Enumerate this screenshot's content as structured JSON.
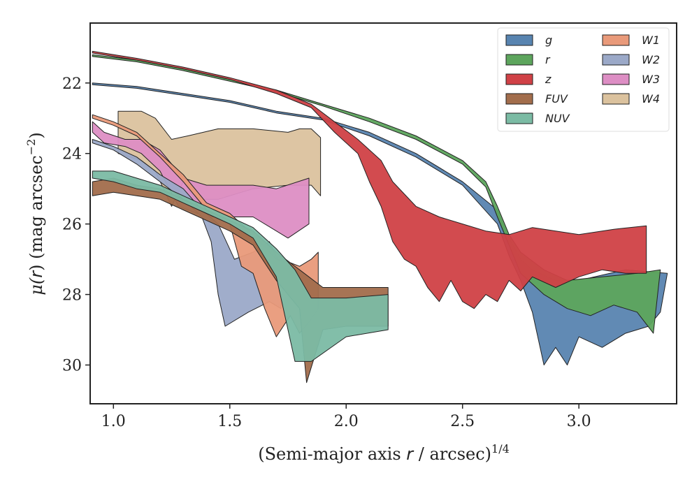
{
  "chart_data": {
    "type": "area",
    "title": "",
    "xlabel_pre": "(Semi-major axis ",
    "xlabel_var": "r",
    "xlabel_post": " / arcsec)",
    "xlabel_sup": "1/4",
    "ylabel_pre": "μ(",
    "ylabel_var": "r",
    "ylabel_post": ") (mag arcsec",
    "ylabel_sup": "−2",
    "ylabel_close": ")",
    "xlim": [
      0.9,
      3.42
    ],
    "ylim": [
      31.1,
      20.3
    ],
    "y_inverted": true,
    "xticks": [
      1.0,
      1.5,
      2.0,
      2.5,
      3.0
    ],
    "xtick_labels": [
      "1.0",
      "1.5",
      "2.0",
      "2.5",
      "3.0"
    ],
    "yticks": [
      22,
      24,
      26,
      28,
      30
    ],
    "ytick_labels": [
      "22",
      "24",
      "26",
      "28",
      "30"
    ],
    "grid": false,
    "legend_position": "top-right",
    "legend_columns": 2,
    "series": [
      {
        "name": "W4",
        "color": "#dbc29e",
        "upper": [
          [
            1.02,
            22.8
          ],
          [
            1.12,
            22.8
          ],
          [
            1.18,
            23.0
          ],
          [
            1.25,
            23.6
          ],
          [
            1.32,
            23.5
          ],
          [
            1.45,
            23.3
          ],
          [
            1.6,
            23.3
          ],
          [
            1.75,
            23.4
          ],
          [
            1.8,
            23.3
          ],
          [
            1.85,
            23.3
          ],
          [
            1.89,
            23.55
          ]
        ],
        "lower": [
          [
            1.02,
            24.0
          ],
          [
            1.12,
            24.2
          ],
          [
            1.18,
            24.5
          ],
          [
            1.25,
            25.5
          ],
          [
            1.3,
            24.8
          ],
          [
            1.35,
            25.3
          ],
          [
            1.45,
            25.3
          ],
          [
            1.6,
            25.0
          ],
          [
            1.75,
            24.9
          ],
          [
            1.85,
            24.9
          ],
          [
            1.89,
            25.2
          ]
        ]
      },
      {
        "name": "W3",
        "color": "#dd8ec4",
        "upper": [
          [
            0.91,
            23.1
          ],
          [
            0.96,
            23.4
          ],
          [
            1.05,
            23.6
          ],
          [
            1.12,
            23.6
          ],
          [
            1.2,
            23.9
          ],
          [
            1.3,
            24.7
          ],
          [
            1.4,
            24.9
          ],
          [
            1.6,
            24.9
          ],
          [
            1.7,
            25.0
          ],
          [
            1.84,
            24.7
          ]
        ],
        "lower": [
          [
            0.91,
            23.4
          ],
          [
            0.96,
            23.7
          ],
          [
            1.05,
            23.8
          ],
          [
            1.12,
            24.0
          ],
          [
            1.2,
            24.5
          ],
          [
            1.28,
            25.5
          ],
          [
            1.4,
            25.8
          ],
          [
            1.6,
            25.8
          ],
          [
            1.75,
            26.4
          ],
          [
            1.84,
            26.0
          ]
        ]
      },
      {
        "name": "W2",
        "color": "#9ba9c8",
        "upper": [
          [
            0.91,
            23.6
          ],
          [
            1.0,
            23.8
          ],
          [
            1.1,
            24.1
          ],
          [
            1.2,
            24.6
          ],
          [
            1.3,
            25.0
          ],
          [
            1.38,
            25.6
          ],
          [
            1.45,
            26.0
          ],
          [
            1.52,
            27.0
          ],
          [
            1.6,
            26.8
          ],
          [
            1.67,
            26.5
          ],
          [
            1.72,
            27.2
          ]
        ],
        "lower": [
          [
            0.91,
            23.7
          ],
          [
            1.0,
            23.9
          ],
          [
            1.1,
            24.3
          ],
          [
            1.2,
            24.8
          ],
          [
            1.3,
            25.3
          ],
          [
            1.38,
            25.8
          ],
          [
            1.42,
            26.5
          ],
          [
            1.45,
            28.0
          ],
          [
            1.48,
            28.9
          ],
          [
            1.58,
            28.5
          ],
          [
            1.67,
            28.2
          ],
          [
            1.72,
            28.4
          ]
        ]
      },
      {
        "name": "W1",
        "color": "#e99a7a",
        "upper": [
          [
            0.91,
            22.9
          ],
          [
            1.0,
            23.1
          ],
          [
            1.1,
            23.4
          ],
          [
            1.2,
            24.0
          ],
          [
            1.3,
            24.6
          ],
          [
            1.4,
            25.4
          ],
          [
            1.5,
            25.7
          ],
          [
            1.6,
            26.3
          ],
          [
            1.7,
            27.0
          ],
          [
            1.76,
            27.1
          ],
          [
            1.8,
            27.2
          ],
          [
            1.85,
            27.0
          ],
          [
            1.88,
            26.8
          ]
        ],
        "lower": [
          [
            0.91,
            23.0
          ],
          [
            1.0,
            23.2
          ],
          [
            1.1,
            23.5
          ],
          [
            1.2,
            24.1
          ],
          [
            1.3,
            24.8
          ],
          [
            1.4,
            25.6
          ],
          [
            1.5,
            26.0
          ],
          [
            1.55,
            27.2
          ],
          [
            1.6,
            27.4
          ],
          [
            1.65,
            28.4
          ],
          [
            1.7,
            29.2
          ],
          [
            1.76,
            28.6
          ],
          [
            1.8,
            29.1
          ],
          [
            1.85,
            28.7
          ],
          [
            1.88,
            28.4
          ]
        ]
      },
      {
        "name": "FUV",
        "color": "#a26d4c",
        "upper": [
          [
            0.91,
            24.8
          ],
          [
            1.0,
            24.7
          ],
          [
            1.1,
            24.9
          ],
          [
            1.2,
            25.0
          ],
          [
            1.3,
            25.3
          ],
          [
            1.4,
            25.6
          ],
          [
            1.5,
            25.9
          ],
          [
            1.6,
            26.2
          ],
          [
            1.7,
            26.8
          ],
          [
            1.8,
            27.3
          ],
          [
            1.9,
            27.8
          ],
          [
            2.0,
            27.8
          ],
          [
            2.18,
            27.8
          ]
        ],
        "lower": [
          [
            0.91,
            25.2
          ],
          [
            1.0,
            25.1
          ],
          [
            1.1,
            25.2
          ],
          [
            1.2,
            25.3
          ],
          [
            1.3,
            25.6
          ],
          [
            1.4,
            25.9
          ],
          [
            1.5,
            26.2
          ],
          [
            1.6,
            26.6
          ],
          [
            1.7,
            27.6
          ],
          [
            1.8,
            28.4
          ],
          [
            1.83,
            30.5
          ],
          [
            1.9,
            29.0
          ],
          [
            2.0,
            28.9
          ],
          [
            2.18,
            28.9
          ]
        ]
      },
      {
        "name": "NUV",
        "color": "#7bbba4",
        "upper": [
          [
            0.91,
            24.5
          ],
          [
            1.0,
            24.5
          ],
          [
            1.1,
            24.7
          ],
          [
            1.2,
            24.9
          ],
          [
            1.3,
            25.2
          ],
          [
            1.4,
            25.5
          ],
          [
            1.5,
            25.8
          ],
          [
            1.6,
            26.1
          ],
          [
            1.7,
            26.7
          ],
          [
            1.78,
            27.3
          ],
          [
            1.85,
            28.1
          ],
          [
            2.0,
            28.1
          ],
          [
            2.18,
            28.0
          ]
        ],
        "lower": [
          [
            0.91,
            24.7
          ],
          [
            1.0,
            24.8
          ],
          [
            1.1,
            25.0
          ],
          [
            1.2,
            25.1
          ],
          [
            1.3,
            25.4
          ],
          [
            1.4,
            25.7
          ],
          [
            1.5,
            26.0
          ],
          [
            1.6,
            26.4
          ],
          [
            1.7,
            27.5
          ],
          [
            1.78,
            29.9
          ],
          [
            1.85,
            29.9
          ],
          [
            2.0,
            29.2
          ],
          [
            2.18,
            29.0
          ]
        ]
      },
      {
        "name": "g",
        "color": "#5884b0",
        "upper": [
          [
            0.91,
            22.0
          ],
          [
            1.1,
            22.1
          ],
          [
            1.3,
            22.3
          ],
          [
            1.5,
            22.5
          ],
          [
            1.7,
            22.8
          ],
          [
            1.9,
            23.0
          ],
          [
            2.1,
            23.4
          ],
          [
            2.3,
            24.0
          ],
          [
            2.5,
            24.8
          ],
          [
            2.65,
            25.6
          ],
          [
            2.7,
            26.4
          ],
          [
            2.75,
            27.0
          ],
          [
            2.8,
            27.3
          ],
          [
            2.9,
            27.6
          ],
          [
            3.0,
            27.6
          ],
          [
            3.2,
            27.3
          ],
          [
            3.38,
            27.4
          ]
        ],
        "lower": [
          [
            0.91,
            22.05
          ],
          [
            1.1,
            22.15
          ],
          [
            1.3,
            22.35
          ],
          [
            1.5,
            22.55
          ],
          [
            1.7,
            22.85
          ],
          [
            1.9,
            23.05
          ],
          [
            2.1,
            23.5
          ],
          [
            2.3,
            24.1
          ],
          [
            2.5,
            24.9
          ],
          [
            2.65,
            26.0
          ],
          [
            2.7,
            26.9
          ],
          [
            2.75,
            27.6
          ],
          [
            2.8,
            28.5
          ],
          [
            2.85,
            30.0
          ],
          [
            2.9,
            29.5
          ],
          [
            2.95,
            30.0
          ],
          [
            3.0,
            29.2
          ],
          [
            3.1,
            29.5
          ],
          [
            3.2,
            29.1
          ],
          [
            3.3,
            28.9
          ],
          [
            3.35,
            28.5
          ]
        ]
      },
      {
        "name": "r",
        "color": "#5da55d",
        "upper": [
          [
            0.91,
            21.2
          ],
          [
            1.1,
            21.35
          ],
          [
            1.3,
            21.6
          ],
          [
            1.5,
            21.9
          ],
          [
            1.7,
            22.2
          ],
          [
            1.9,
            22.6
          ],
          [
            2.1,
            23.0
          ],
          [
            2.3,
            23.5
          ],
          [
            2.5,
            24.2
          ],
          [
            2.6,
            24.8
          ],
          [
            2.65,
            25.5
          ],
          [
            2.7,
            26.3
          ],
          [
            2.75,
            26.8
          ],
          [
            2.85,
            27.3
          ],
          [
            2.95,
            27.6
          ],
          [
            3.1,
            27.5
          ],
          [
            3.25,
            27.4
          ],
          [
            3.35,
            27.3
          ]
        ],
        "lower": [
          [
            0.91,
            21.25
          ],
          [
            1.1,
            21.4
          ],
          [
            1.3,
            21.65
          ],
          [
            1.5,
            21.95
          ],
          [
            1.7,
            22.25
          ],
          [
            1.9,
            22.65
          ],
          [
            2.1,
            23.1
          ],
          [
            2.3,
            23.6
          ],
          [
            2.5,
            24.3
          ],
          [
            2.6,
            24.95
          ],
          [
            2.65,
            25.8
          ],
          [
            2.7,
            26.6
          ],
          [
            2.75,
            27.4
          ],
          [
            2.85,
            28.0
          ],
          [
            2.95,
            28.4
          ],
          [
            3.05,
            28.6
          ],
          [
            3.15,
            28.3
          ],
          [
            3.25,
            28.5
          ],
          [
            3.32,
            29.1
          ]
        ]
      },
      {
        "name": "z",
        "color": "#d04146",
        "upper": [
          [
            0.91,
            21.1
          ],
          [
            1.1,
            21.3
          ],
          [
            1.3,
            21.55
          ],
          [
            1.5,
            21.85
          ],
          [
            1.7,
            22.2
          ],
          [
            1.85,
            22.6
          ],
          [
            1.95,
            23.1
          ],
          [
            2.05,
            23.6
          ],
          [
            2.15,
            24.2
          ],
          [
            2.2,
            24.8
          ],
          [
            2.3,
            25.5
          ],
          [
            2.4,
            25.8
          ],
          [
            2.5,
            26.0
          ],
          [
            2.6,
            26.2
          ],
          [
            2.7,
            26.3
          ],
          [
            2.8,
            26.1
          ],
          [
            3.0,
            26.3
          ],
          [
            3.15,
            26.15
          ],
          [
            3.29,
            26.05
          ]
        ],
        "lower": [
          [
            0.91,
            21.15
          ],
          [
            1.1,
            21.35
          ],
          [
            1.3,
            21.6
          ],
          [
            1.5,
            21.9
          ],
          [
            1.7,
            22.3
          ],
          [
            1.85,
            22.7
          ],
          [
            1.95,
            23.4
          ],
          [
            2.05,
            24.0
          ],
          [
            2.1,
            24.8
          ],
          [
            2.15,
            25.5
          ],
          [
            2.2,
            26.5
          ],
          [
            2.25,
            27.0
          ],
          [
            2.3,
            27.2
          ],
          [
            2.35,
            27.8
          ],
          [
            2.4,
            28.2
          ],
          [
            2.45,
            27.6
          ],
          [
            2.5,
            28.2
          ],
          [
            2.55,
            28.4
          ],
          [
            2.6,
            28.0
          ],
          [
            2.65,
            28.2
          ],
          [
            2.7,
            27.6
          ],
          [
            2.75,
            27.9
          ],
          [
            2.8,
            27.5
          ],
          [
            2.9,
            27.8
          ],
          [
            3.0,
            27.5
          ],
          [
            3.1,
            27.3
          ],
          [
            3.2,
            27.4
          ],
          [
            3.29,
            27.4
          ]
        ]
      }
    ]
  }
}
